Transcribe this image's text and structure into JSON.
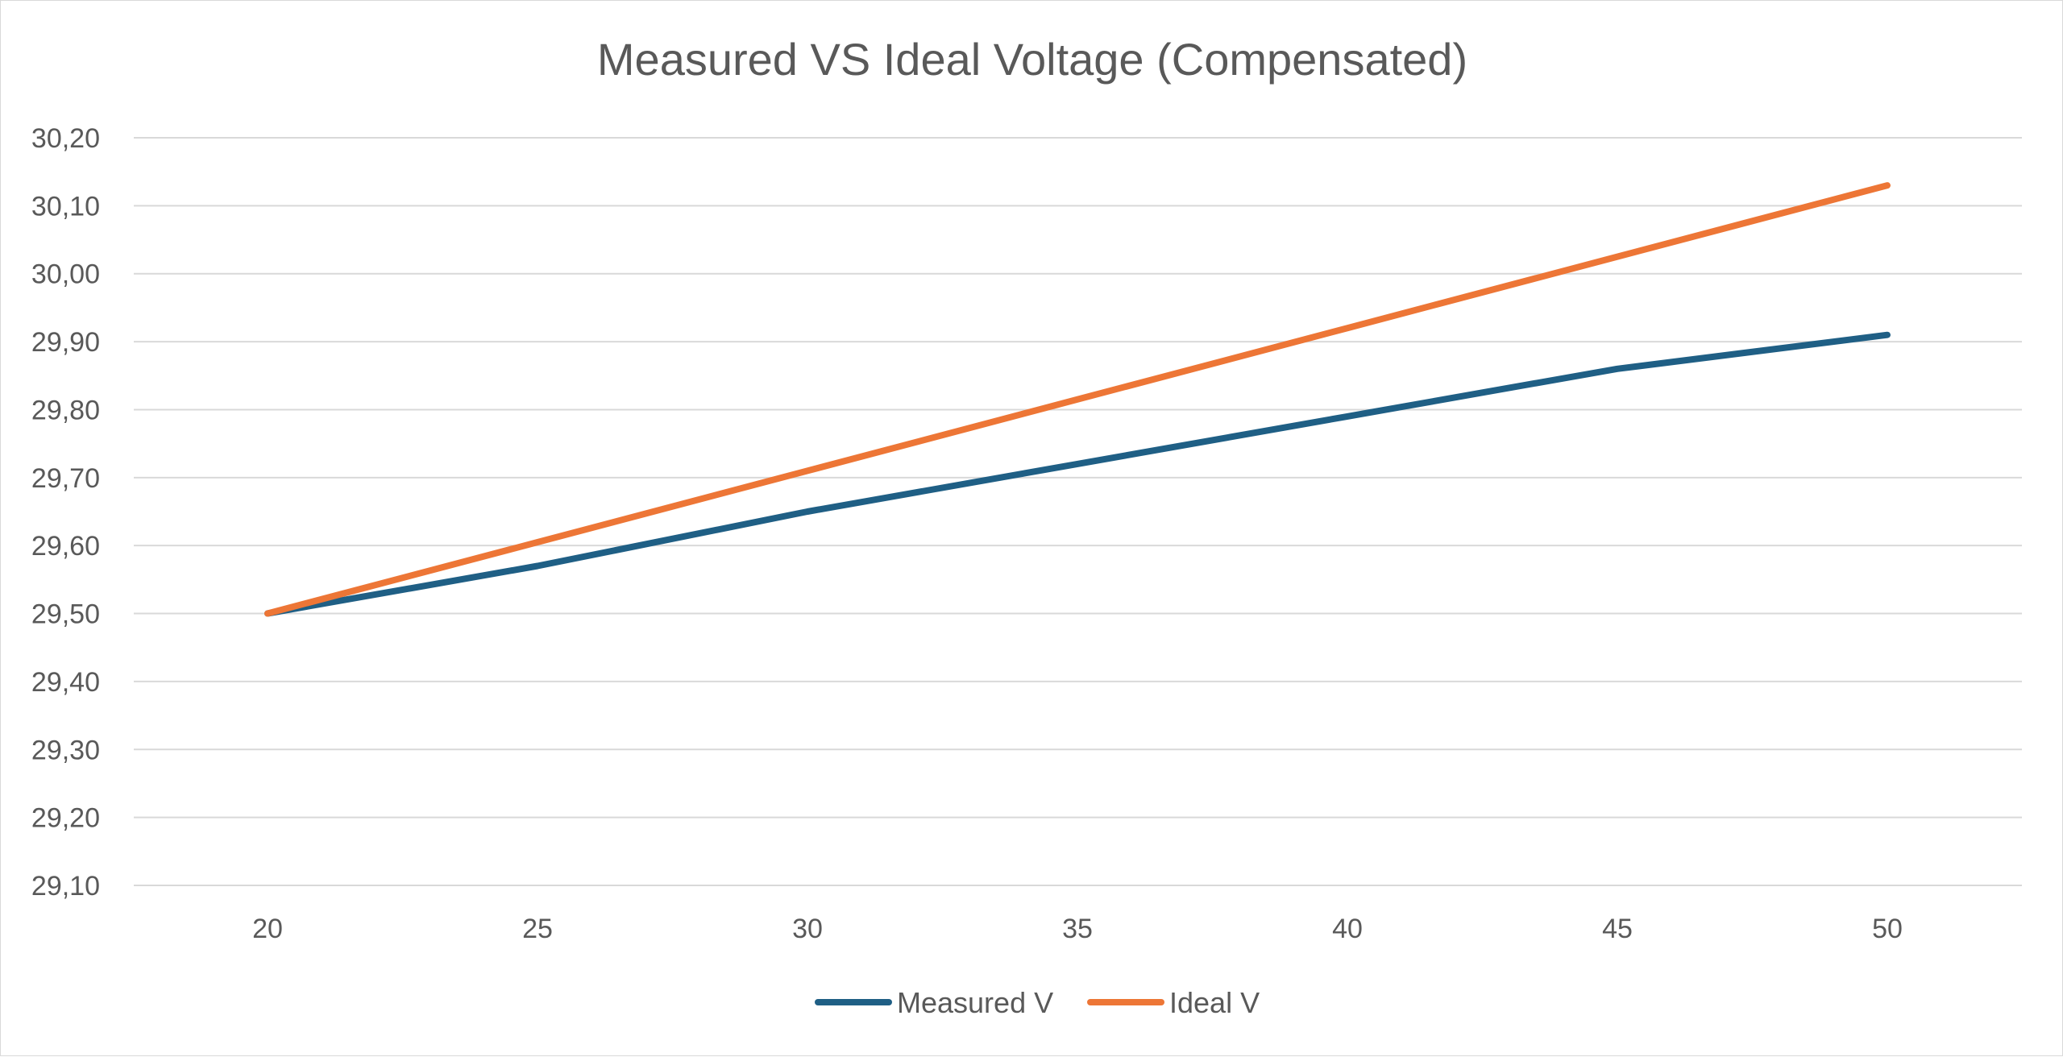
{
  "chart_data": {
    "type": "line",
    "title": "Measured VS Ideal Voltage (Compensated)",
    "xlabel": "",
    "ylabel": "",
    "x": [
      20,
      25,
      30,
      35,
      40,
      45,
      50
    ],
    "x_tick_labels": [
      "20",
      "25",
      "30",
      "35",
      "40",
      "45",
      "50"
    ],
    "ylim": [
      29.1,
      30.2
    ],
    "y_tick_labels": [
      "30,20",
      "30,10",
      "30,00",
      "29,90",
      "29,80",
      "29,70",
      "29,60",
      "29,50",
      "29,40",
      "29,30",
      "29,20",
      "29,10"
    ],
    "y_ticks": [
      30.2,
      30.1,
      30.0,
      29.9,
      29.8,
      29.7,
      29.6,
      29.5,
      29.4,
      29.3,
      29.2,
      29.1
    ],
    "grid": true,
    "legend_position": "bottom",
    "series": [
      {
        "name": "Measured V",
        "color": "#1f5f85",
        "values": [
          29.5,
          29.57,
          29.65,
          29.72,
          29.79,
          29.86,
          29.91
        ]
      },
      {
        "name": "Ideal V",
        "color": "#ed7636",
        "values": [
          29.5,
          29.605,
          29.71,
          29.815,
          29.92,
          30.025,
          30.13
        ]
      }
    ]
  }
}
